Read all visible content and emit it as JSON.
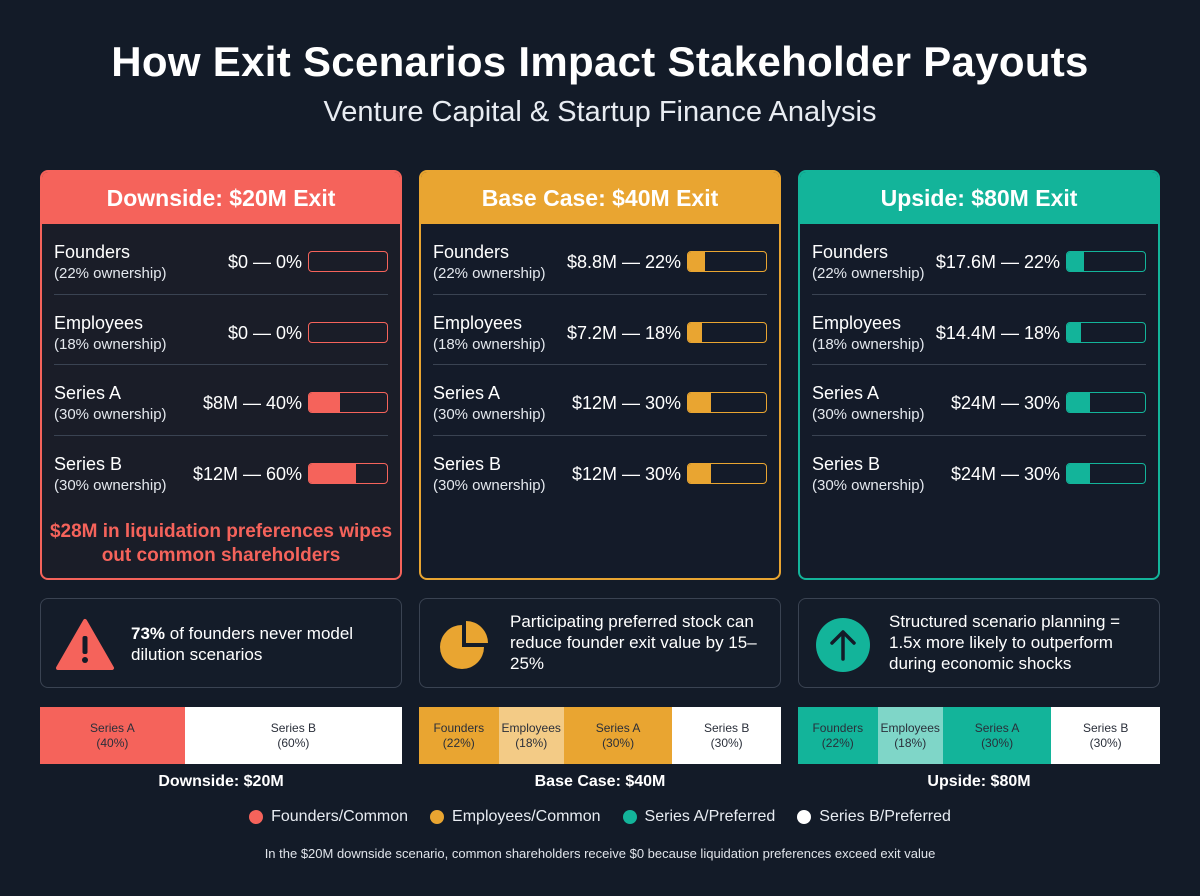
{
  "title": "How Exit Scenarios Impact Stakeholder Payouts",
  "subtitle": "Venture Capital & Startup Finance Analysis",
  "colors": {
    "red": "#f5635b",
    "orange": "#e9a531",
    "teal": "#13b49a",
    "light_orange": "#f3cb86",
    "light_teal": "#7fd6c8",
    "white": "#ffffff"
  },
  "chart_data": {
    "type": "table",
    "scenarios": [
      {
        "header": "Downside: $20M Exit",
        "exit_value_millions": 20,
        "rows": [
          {
            "name": "Founders",
            "ownership": "(22% ownership)",
            "payout": "$0 — 0%",
            "share": 0
          },
          {
            "name": "Employees",
            "ownership": "(18% ownership)",
            "payout": "$0 — 0%",
            "share": 0
          },
          {
            "name": "Series A",
            "ownership": "(30% ownership)",
            "payout": "$8M — 40%",
            "share": 40
          },
          {
            "name": "Series B",
            "ownership": "(30% ownership)",
            "payout": "$12M — 60%",
            "share": 60
          }
        ],
        "note": "$28M in liquidation preferences wipes out common shareholders"
      },
      {
        "header": "Base Case: $40M Exit",
        "exit_value_millions": 40,
        "rows": [
          {
            "name": "Founders",
            "ownership": "(22% ownership)",
            "payout": "$8.8M — 22%",
            "share": 22
          },
          {
            "name": "Employees",
            "ownership": "(18% ownership)",
            "payout": "$7.2M — 18%",
            "share": 18
          },
          {
            "name": "Series A",
            "ownership": "(30% ownership)",
            "payout": "$12M — 30%",
            "share": 30
          },
          {
            "name": "Series B",
            "ownership": "(30% ownership)",
            "payout": "$12M — 30%",
            "share": 30
          }
        ],
        "note": ""
      },
      {
        "header": "Upside: $80M Exit",
        "exit_value_millions": 80,
        "rows": [
          {
            "name": "Founders",
            "ownership": "(22% ownership)",
            "payout": "$17.6M — 22%",
            "share": 22
          },
          {
            "name": "Employees",
            "ownership": "(18% ownership)",
            "payout": "$14.4M — 18%",
            "share": 18
          },
          {
            "name": "Series A",
            "ownership": "(30% ownership)",
            "payout": "$24M — 30%",
            "share": 30
          },
          {
            "name": "Series B",
            "ownership": "(30% ownership)",
            "payout": "$24M — 30%",
            "share": 30
          }
        ],
        "note": ""
      }
    ],
    "stacked_bars": [
      {
        "label": "Downside: $20M",
        "segments": [
          {
            "name": "Series A",
            "pct_label": "(40%)",
            "value": 40,
            "color": "red"
          },
          {
            "name": "Series B",
            "pct_label": "(60%)",
            "value": 60,
            "color": "white"
          }
        ]
      },
      {
        "label": "Base Case: $40M",
        "segments": [
          {
            "name": "Founders",
            "pct_label": "(22%)",
            "value": 22,
            "color": "orange"
          },
          {
            "name": "Employees",
            "pct_label": "(18%)",
            "value": 18,
            "color": "light_orange"
          },
          {
            "name": "Series A",
            "pct_label": "(30%)",
            "value": 30,
            "color": "orange"
          },
          {
            "name": "Series B",
            "pct_label": "(30%)",
            "value": 30,
            "color": "white"
          }
        ]
      },
      {
        "label": "Upside: $80M",
        "segments": [
          {
            "name": "Founders",
            "pct_label": "(22%)",
            "value": 22,
            "color": "teal"
          },
          {
            "name": "Employees",
            "pct_label": "(18%)",
            "value": 18,
            "color": "light_teal"
          },
          {
            "name": "Series A",
            "pct_label": "(30%)",
            "value": 30,
            "color": "teal"
          },
          {
            "name": "Series B",
            "pct_label": "(30%)",
            "value": 30,
            "color": "white"
          }
        ]
      }
    ],
    "legend": [
      {
        "label": "Founders/Common",
        "color": "red"
      },
      {
        "label": "Employees/Common",
        "color": "orange"
      },
      {
        "label": "Series A/Preferred",
        "color": "teal"
      },
      {
        "label": "Series B/Preferred",
        "color": "white"
      }
    ]
  },
  "insights": [
    {
      "icon": "warning-icon",
      "bold": "73%",
      "text": " of founders never model dilution scenarios"
    },
    {
      "icon": "pie-chart-icon",
      "bold": "",
      "text": "Participating preferred stock can reduce founder exit value by 15–25%"
    },
    {
      "icon": "arrow-up-icon",
      "bold": "",
      "text": "Structured scenario planning = 1.5x more likely to outperform during economic shocks"
    }
  ],
  "footnote": "In the $20M downside scenario, common shareholders receive $0 because liquidation preferences exceed exit value"
}
